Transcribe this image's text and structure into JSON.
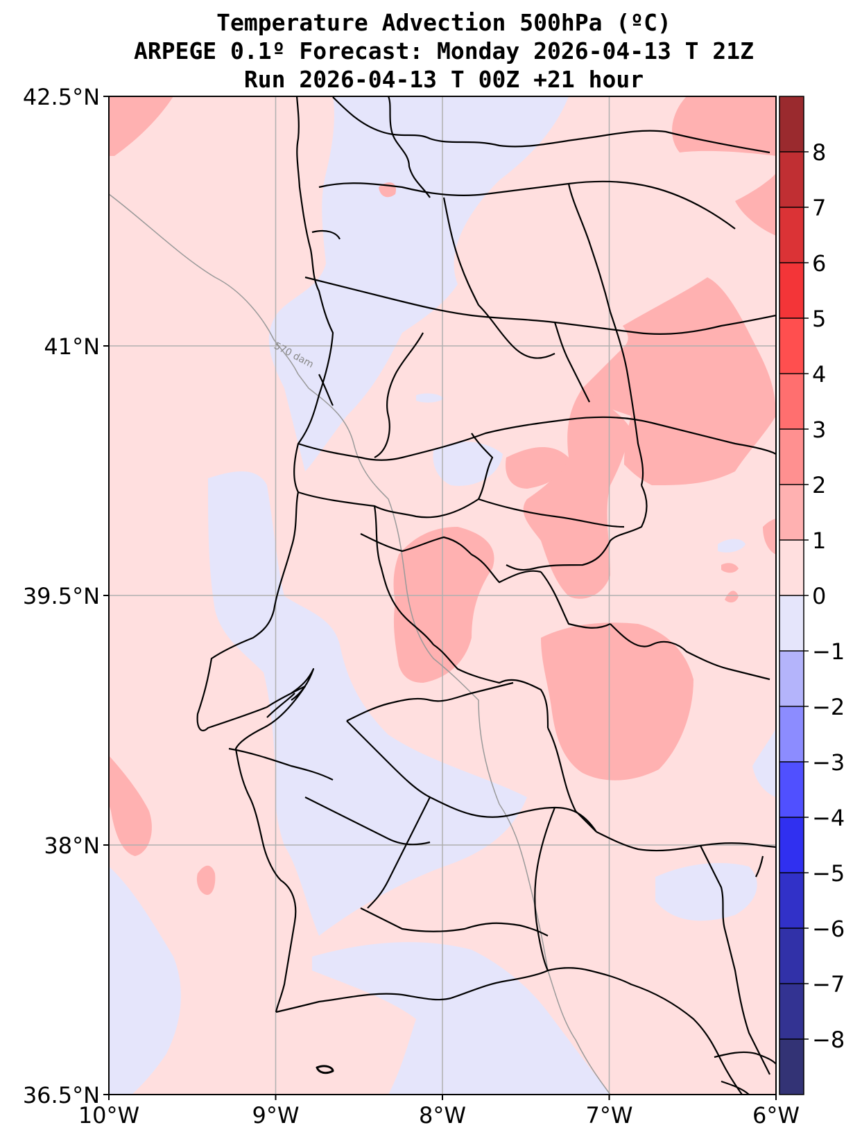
{
  "title": {
    "line1": "Temperature Advection  500hPa (ºC)",
    "line2": "ARPEGE 0.1º Forecast: Monday 2026-04-13 T 21Z",
    "line3": "Run 2026-04-13 T 00Z +21 hour"
  },
  "axes": {
    "x_ticks": [
      "10°W",
      "9°W",
      "8°W",
      "7°W",
      "6°W"
    ],
    "y_ticks": [
      "42.5°N",
      "41°N",
      "39.5°N",
      "38°N",
      "36.5°N"
    ]
  },
  "geopotential_contour": {
    "label": "570 dam"
  },
  "colorbar": {
    "ticks": [
      "8",
      "7",
      "6",
      "5",
      "4",
      "3",
      "2",
      "1",
      "0",
      "−1",
      "−2",
      "−3",
      "−4",
      "−5",
      "−6",
      "−7",
      "−8"
    ],
    "levels": [
      {
        "range": "8 to 9",
        "color": "#9a2a2e"
      },
      {
        "range": "7 to 8",
        "color": "#c02f33"
      },
      {
        "range": "6 to 7",
        "color": "#db3336"
      },
      {
        "range": "5 to 6",
        "color": "#f33538"
      },
      {
        "range": "4 to 5",
        "color": "#ff4f4f"
      },
      {
        "range": "3 to 4",
        "color": "#ff6f6f"
      },
      {
        "range": "2 to 3",
        "color": "#ff9090"
      },
      {
        "range": "1 to 2",
        "color": "#ffb1b1"
      },
      {
        "range": "0 to 1",
        "color": "#ffdfdf"
      },
      {
        "range": "-1 to 0",
        "color": "#e5e5fb"
      },
      {
        "range": "-2 to -1",
        "color": "#b4b4fb"
      },
      {
        "range": "-3 to -2",
        "color": "#8c8cff"
      },
      {
        "range": "-4 to -3",
        "color": "#5050ff"
      },
      {
        "range": "-5 to -4",
        "color": "#3030f0"
      },
      {
        "range": "-6 to -5",
        "color": "#3131c8"
      },
      {
        "range": "-7 to -6",
        "color": "#3131a8"
      },
      {
        "range": "-8 to -7",
        "color": "#333392"
      },
      {
        "range": "-9 to -8",
        "color": "#333375"
      }
    ]
  }
}
